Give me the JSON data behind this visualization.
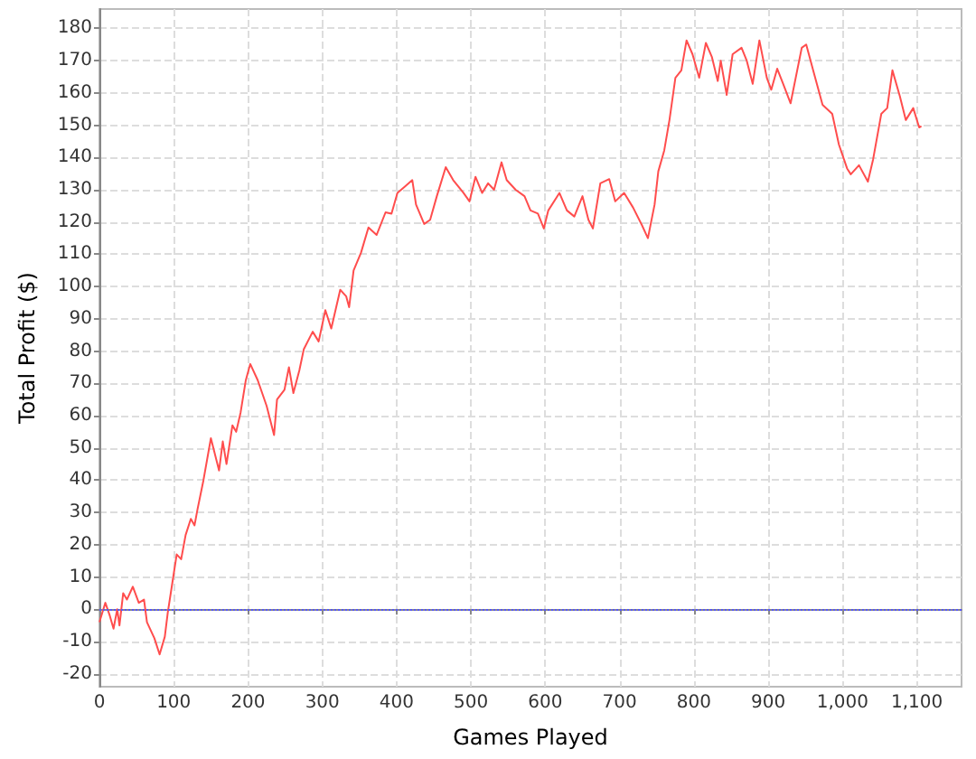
{
  "chart_data": {
    "type": "line",
    "xlabel": "Games Played",
    "ylabel": "Total Profit ($)",
    "xlim": [
      0,
      1160
    ],
    "ylim": [
      -24,
      186
    ],
    "xticks": [
      0,
      100,
      200,
      300,
      400,
      500,
      600,
      700,
      800,
      900,
      {
        "value": 1000,
        "label": "1,000"
      },
      {
        "value": 1100,
        "label": "1,100"
      }
    ],
    "yticks": [
      -20,
      -10,
      0,
      10,
      20,
      30,
      40,
      50,
      60,
      70,
      80,
      90,
      100,
      110,
      120,
      130,
      140,
      150,
      160,
      170,
      180
    ],
    "grid": true,
    "marker": "none",
    "line_style": "solid",
    "ref_lines": [
      {
        "axis": "y",
        "value": 0,
        "color": "#5555ff",
        "line_style": "dotted"
      }
    ],
    "series": [
      {
        "color": "#ff4d4d",
        "x": [
          0,
          8,
          14,
          19,
          24,
          27,
          32,
          37,
          45,
          53,
          60,
          64,
          74,
          81,
          88,
          92,
          100,
          104,
          110,
          116,
          123,
          128,
          132,
          140,
          150,
          161,
          166,
          171,
          179,
          184,
          190,
          197,
          203,
          213,
          225,
          235,
          239,
          249,
          255,
          261,
          269,
          275,
          287,
          295,
          304,
          312,
          324,
          332,
          336,
          342,
          352,
          362,
          373,
          385,
          393,
          401,
          411,
          421,
          426,
          437,
          445,
          454,
          466,
          476,
          490,
          498,
          506,
          515,
          523,
          531,
          541,
          548,
          560,
          572,
          580,
          590,
          598,
          604,
          619,
          629,
          639,
          650,
          658,
          664,
          674,
          686,
          694,
          706,
          718,
          730,
          738,
          747,
          752,
          760,
          767,
          775,
          783,
          790,
          798,
          807,
          816,
          824,
          832,
          836,
          844,
          852,
          864,
          871,
          879,
          888,
          898,
          904,
          912,
          920,
          930,
          945,
          951,
          961,
          973,
          986,
          995,
          1006,
          1011,
          1022,
          1034,
          1041,
          1052,
          1060,
          1067,
          1077,
          1085,
          1095,
          1103,
          1106
        ],
        "values": [
          -4,
          2,
          -2,
          -6,
          0,
          -5,
          5,
          3,
          7,
          2,
          3,
          -4,
          -9,
          -14,
          -8.5,
          -1,
          11,
          17,
          15.5,
          23,
          28,
          26,
          31,
          40,
          53,
          43,
          52,
          45,
          57,
          55,
          61,
          71,
          76,
          71,
          63,
          54,
          65,
          68,
          75,
          67,
          74,
          80.6,
          86,
          83,
          92.7,
          87,
          99,
          97,
          93.6,
          105,
          110.5,
          118.3,
          116,
          123,
          122.6,
          129,
          131,
          133,
          125.4,
          119.4,
          120.7,
          128,
          137,
          133,
          129,
          126.4,
          134,
          129,
          132,
          130,
          138.5,
          133,
          130,
          128,
          123.6,
          122.6,
          118,
          123.6,
          129,
          123.6,
          121.7,
          128,
          120.7,
          118,
          132,
          133.3,
          126.4,
          129,
          124.5,
          119,
          115,
          125.4,
          135.7,
          142.2,
          151.6,
          164.7,
          167,
          176.3,
          172,
          164.7,
          175.5,
          171.2,
          163.7,
          170,
          159.4,
          172,
          174,
          170,
          162.8,
          176.3,
          164.7,
          161,
          167.5,
          162.8,
          156.8,
          174,
          175,
          166.5,
          156.3,
          153.5,
          144,
          136.6,
          134.8,
          137.6,
          132.5,
          139.4,
          153.5,
          155.3,
          167,
          159,
          151.6,
          155.3,
          149.3,
          149.7
        ]
      }
    ]
  }
}
